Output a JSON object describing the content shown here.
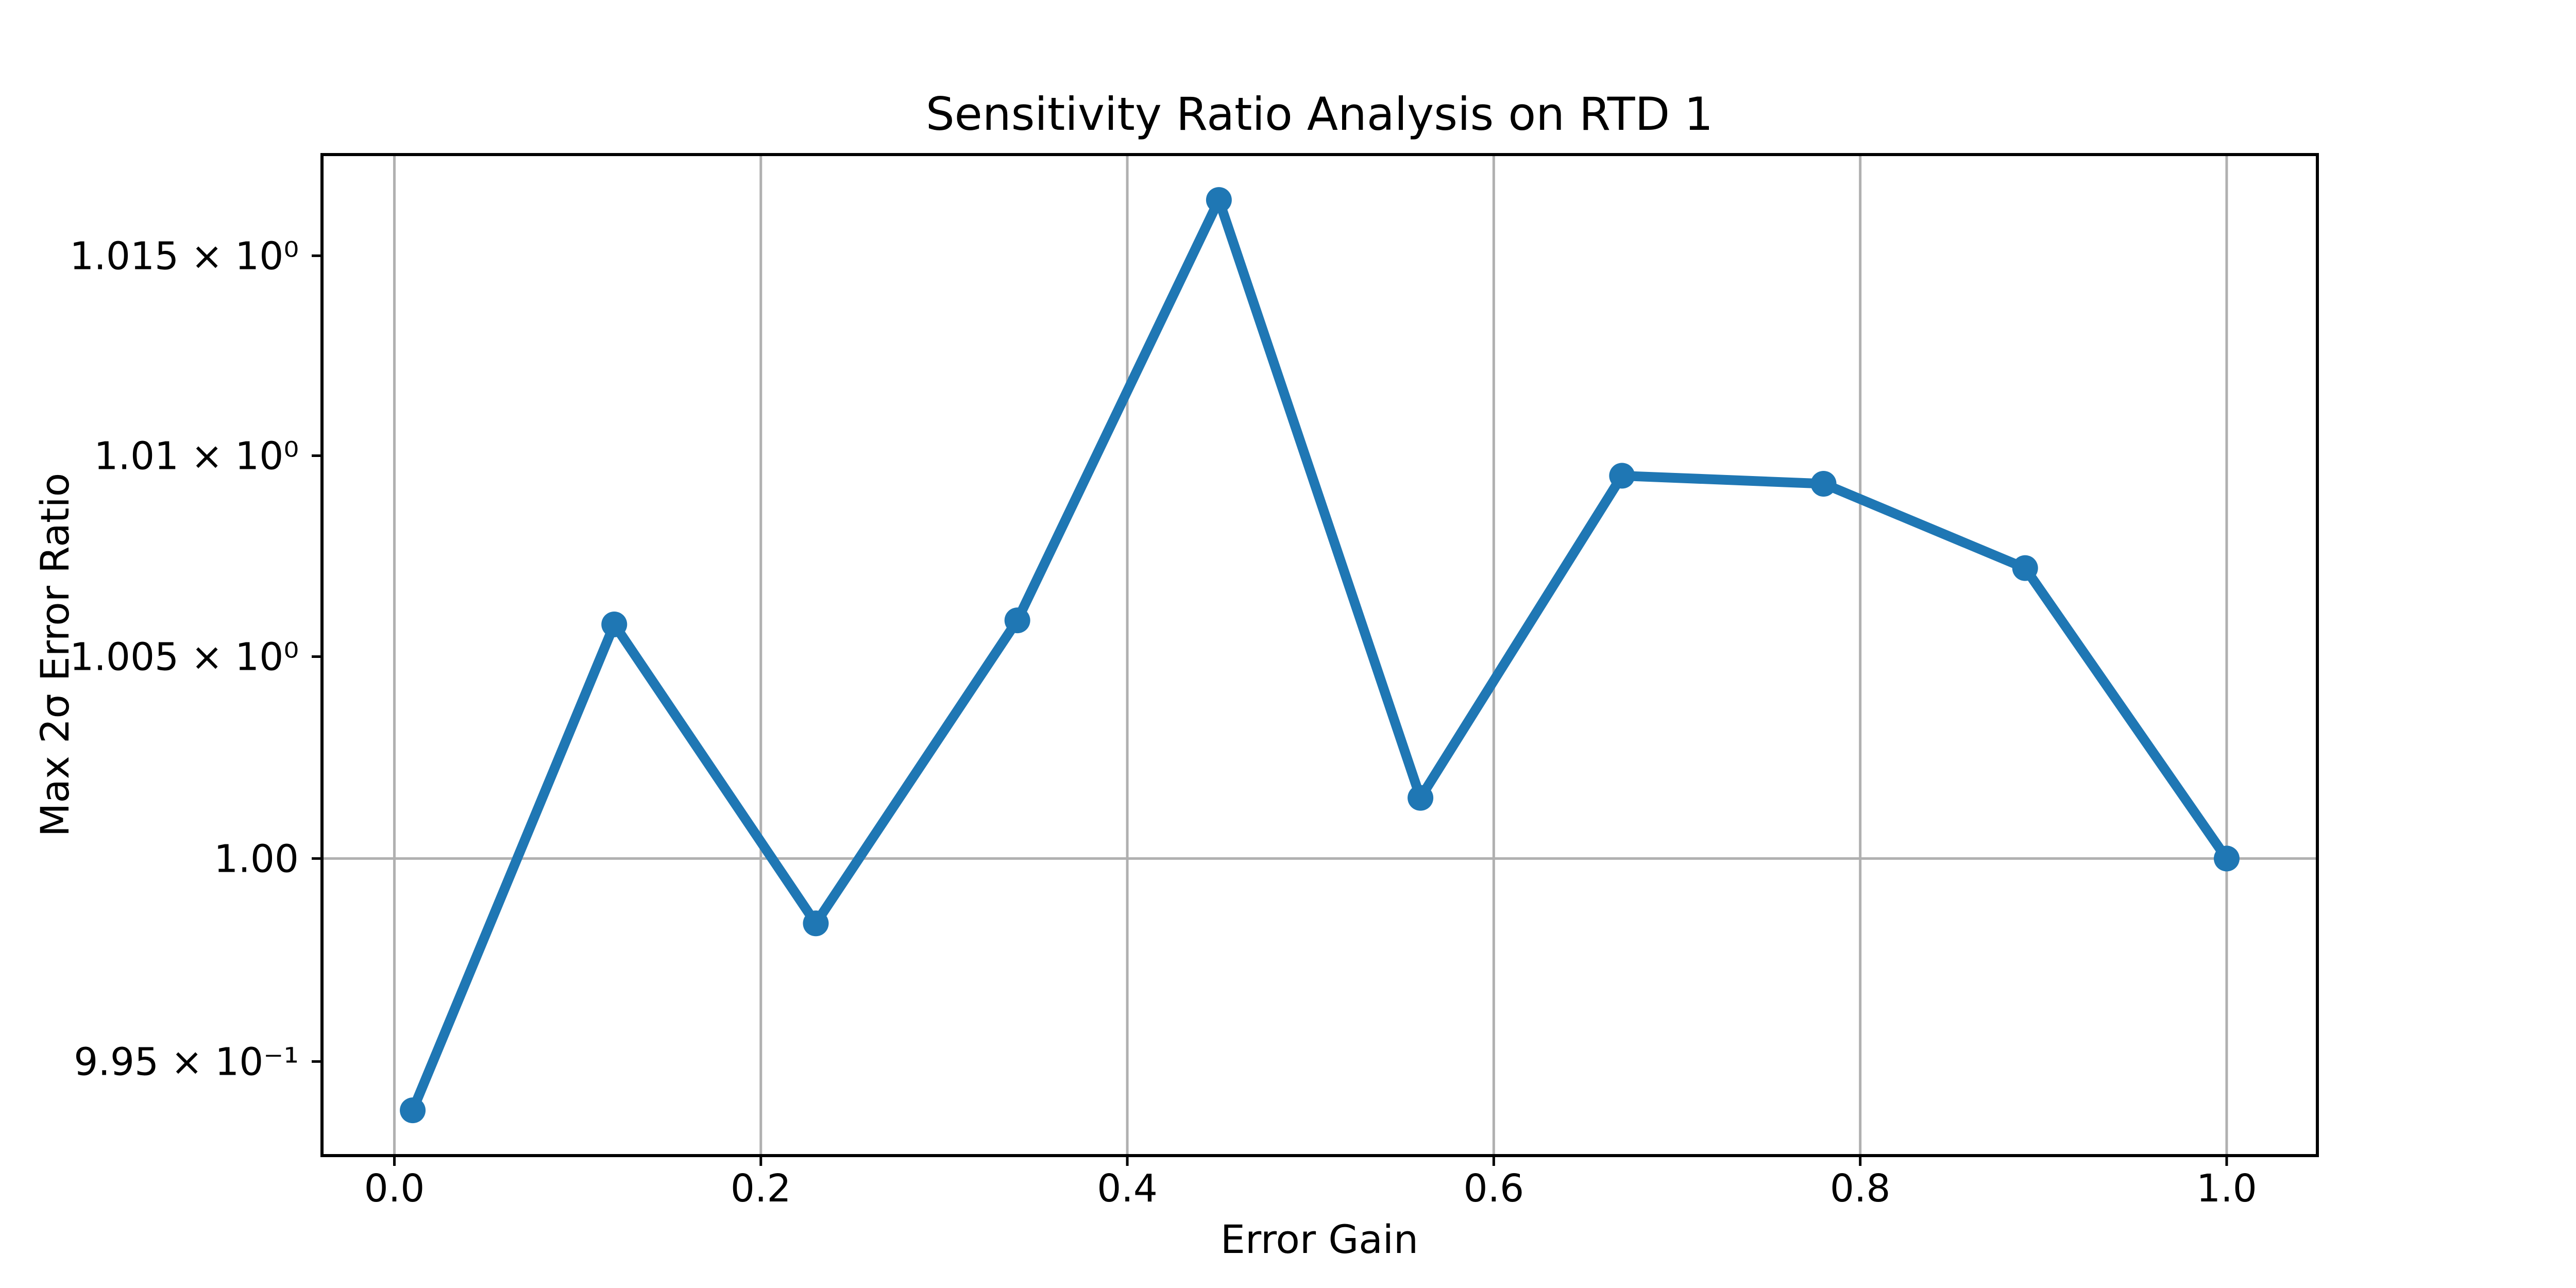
{
  "figure": {
    "background": "#ffffff"
  },
  "chart_data": {
    "type": "line",
    "title": "Sensitivity Ratio Analysis on RTD 1",
    "xlabel": "Error Gain",
    "ylabel": "Max 2σ Error Ratio",
    "x": [
      0.01,
      0.12,
      0.23,
      0.34,
      0.45,
      0.56,
      0.67,
      0.78,
      0.89,
      1.0
    ],
    "y": [
      0.9938,
      1.0058,
      0.9984,
      1.0059,
      1.0164,
      1.0015,
      1.0095,
      1.0093,
      1.0072,
      1.0
    ],
    "yscale": "log",
    "xlim": [
      -0.0395,
      1.0495
    ],
    "ylim": [
      0.99269,
      1.01754
    ],
    "xticks": {
      "values": [
        0.0,
        0.2,
        0.4,
        0.6,
        0.8,
        1.0
      ],
      "labels": [
        "0.0",
        "0.2",
        "0.4",
        "0.6",
        "0.8",
        "1.0"
      ]
    },
    "yticks": {
      "values": [
        1.015,
        1.01,
        1.005,
        1.0,
        0.995
      ],
      "labels": [
        "1.015 × 10⁰",
        "1.01 × 10⁰",
        "1.005 × 10⁰",
        "1.00",
        "9.95 × 10⁻¹"
      ]
    },
    "grid": {
      "vertical_at_xticks": [
        0.0,
        0.2,
        0.4,
        0.6,
        0.8,
        1.0
      ],
      "horizontal_at": [
        1.0
      ],
      "color": "#b0b0b0"
    },
    "line_color": "#1f77b4",
    "marker": "circle",
    "marker_color": "#1f77b4",
    "legend": "none"
  }
}
